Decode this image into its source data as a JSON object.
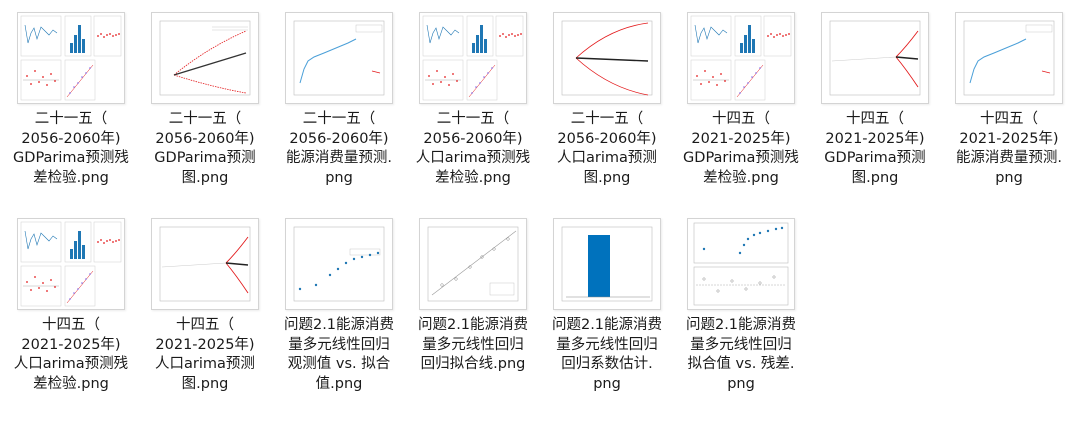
{
  "files": [
    {
      "name": "二十一五（\n2056-2060年)\nGDParima预测残\n差检验.png",
      "kind": "residual-grid",
      "accent": "#1f77b4"
    },
    {
      "name": "二十一五（\n2056-2060年)\nGDParima预测\n图.png",
      "kind": "forecast-fan",
      "accent": "#e31a1c"
    },
    {
      "name": "二十一五（\n2056-2060年)\n能源消费量预测.\npng",
      "kind": "energy-line",
      "accent": "#4a9fd8"
    },
    {
      "name": "二十一五（\n2056-2060年)\n人口arima预测残\n差检验.png",
      "kind": "residual-grid",
      "accent": "#1f77b4"
    },
    {
      "name": "二十一五（\n2056-2060年)\n人口arima预测\n图.png",
      "kind": "forecast-wide",
      "accent": "#e31a1c"
    },
    {
      "name": "十四五（\n2021-2025年)\nGDParima预测残\n差检验.png",
      "kind": "residual-grid",
      "accent": "#1f77b4"
    },
    {
      "name": "十四五（\n2021-2025年)\nGDParima预测\n图.png",
      "kind": "forecast-late",
      "accent": "#e31a1c"
    },
    {
      "name": "十四五（\n2021-2025年)\n能源消费量预测.\npng",
      "kind": "energy-line",
      "accent": "#4a9fd8"
    },
    {
      "name": "十四五（\n2021-2025年)\n人口arima预测残\n差检验.png",
      "kind": "residual-grid",
      "accent": "#1f77b4"
    },
    {
      "name": "十四五（\n2021-2025年)\n人口arima预测\n图.png",
      "kind": "forecast-late",
      "accent": "#e31a1c"
    },
    {
      "name": "问题2.1能源消费\n量多元线性回归\n观测值 vs. 拟合\n值.png",
      "kind": "scatter-up",
      "accent": "#1f77b4"
    },
    {
      "name": "问题2.1能源消费\n量多元线性回归\n回归拟合线.png",
      "kind": "fit-line",
      "accent": "#999999"
    },
    {
      "name": "问题2.1能源消费\n量多元线性回归\n回归系数估计.\npng",
      "kind": "bar-single",
      "accent": "#0072bd"
    },
    {
      "name": "问题2.1能源消费\n量多元线性回归\n拟合值 vs. 残差.\npng",
      "kind": "scatter-resid",
      "accent": "#1f77b4"
    }
  ]
}
